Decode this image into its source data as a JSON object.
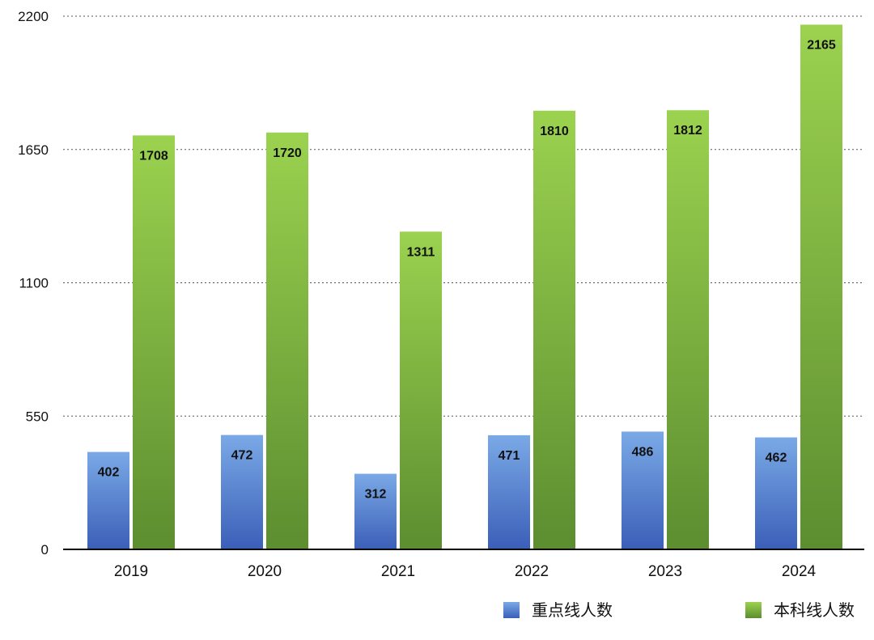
{
  "chart_data": {
    "type": "bar",
    "categories": [
      "2019",
      "2020",
      "2021",
      "2022",
      "2023",
      "2024"
    ],
    "series": [
      {
        "name": "重点线人数",
        "values": [
          402,
          472,
          312,
          471,
          486,
          462
        ],
        "color_top": "#7aa9e6",
        "color_bottom": "#3b5fb8"
      },
      {
        "name": "本科线人数",
        "values": [
          1708,
          1720,
          1311,
          1810,
          1812,
          2165
        ],
        "color_top": "#9bd24f",
        "color_bottom": "#5c8d30"
      }
    ],
    "title": "",
    "xlabel": "",
    "ylabel": "",
    "ylim": [
      0,
      2200
    ],
    "yticks": [
      0,
      550,
      1100,
      1650,
      2200
    ],
    "grid": true,
    "grid_style": "dotted",
    "legend_position": "bottom-right",
    "data_labels": true
  }
}
